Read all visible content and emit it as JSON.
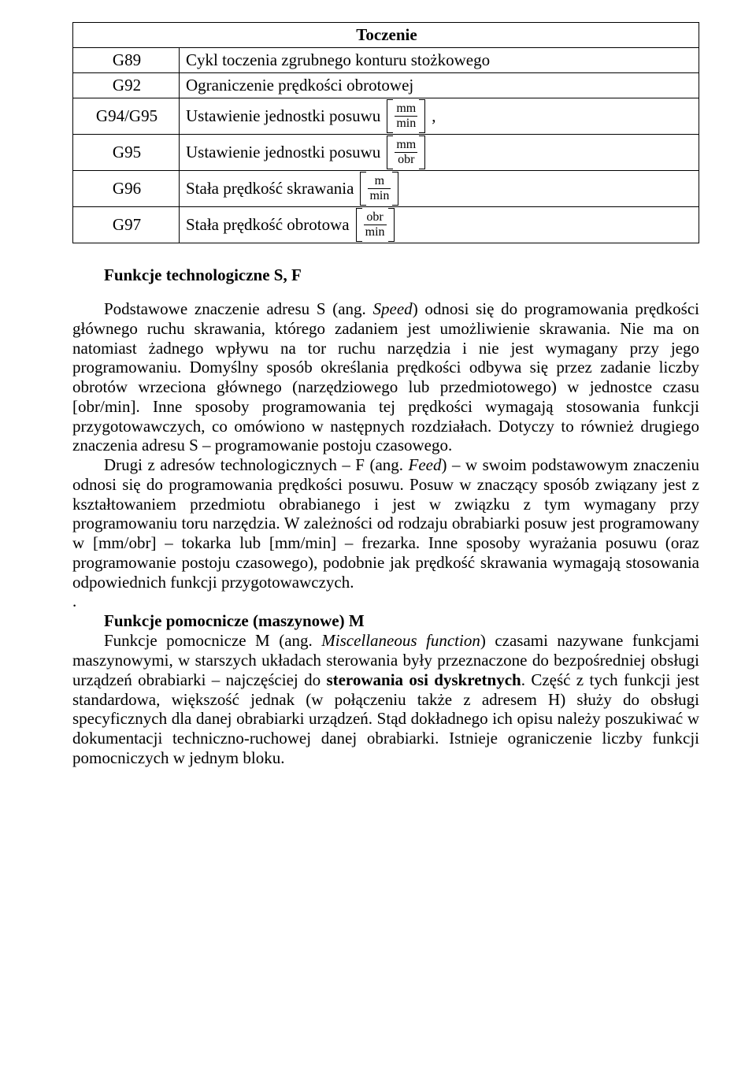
{
  "table": {
    "header": "Toczenie",
    "rows": [
      {
        "code": "G89",
        "desc": "Cykl toczenia zgrubnego konturu stożkowego"
      },
      {
        "code": "G92",
        "desc": "Ograniczenie prędkości obrotowej"
      },
      {
        "code": "G94/G95",
        "desc_prefix": "Ustawienie jednostki posuwu",
        "frac_top": "mm",
        "frac_bot": "min",
        "suffix": ","
      },
      {
        "code": "G95",
        "desc_prefix": "Ustawienie jednostki posuwu",
        "frac_top": "mm",
        "frac_bot": "obr",
        "suffix": ""
      },
      {
        "code": "G96",
        "desc_prefix": "Stała prędkość skrawania",
        "frac_top": "m",
        "frac_bot": "min",
        "suffix": ""
      },
      {
        "code": "G97",
        "desc_prefix": "Stała prędkość obrotowa",
        "frac_top": "obr",
        "frac_bot": "min",
        "suffix": ""
      }
    ]
  },
  "section_sf_title": "Funkcje technologiczne S, F",
  "para1_a": "Podstawowe znaczenie adresu S (ang. ",
  "para1_b_ital": "Speed",
  "para1_c": ") odnosi się do programowania prędkości głównego ruchu skrawania, którego zadaniem jest umożliwienie skrawania. Nie ma on natomiast żadnego wpływu na tor ruchu narzędzia i nie jest wymagany przy jego programowaniu. Domyślny sposób określania prędkości odbywa się przez zadanie liczby obrotów wrzeciona głównego (narzędziowego lub przedmiotowego) w jednostce czasu [obr/min]. Inne sposoby programowania tej prędkości wymagają stosowania funkcji przygotowawczych, co omówiono w następnych rozdziałach. Dotyczy to również drugiego znaczenia adresu S – programowanie postoju czasowego.",
  "para2_a": "Drugi z adresów technologicznych – F (ang. ",
  "para2_b_ital": "Feed",
  "para2_c": ") – w swoim podstawowym znaczeniu odnosi się do programowania prędkości posuwu. Posuw w znaczący sposób związany jest z kształtowaniem przedmiotu obrabianego i jest w związku z tym wymagany przy programowaniu toru narzędzia. W zależności od rodzaju obrabiarki posuw jest programowany w [mm/obr] – tokarka lub [mm/min] – frezarka. Inne sposoby wyrażania posuwu (oraz programowanie postoju czasowego), podobnie jak prędkość skrawania wymagają stosowania odpowiednich funkcji przygotowawczych.",
  "dot": ".",
  "section_m_title": "Funkcje pomocnicze (maszynowe) M",
  "para3_a": "Funkcje pomocnicze M (ang. ",
  "para3_b_ital": "Miscellaneous function",
  "para3_c": ") czasami nazywane funkcjami maszynowymi, w starszych układach sterowania były przeznaczone do bezpośredniej obsługi urządzeń obrabiarki – najczęściej do ",
  "para3_d_bold": "sterowania osi dyskretnych",
  "para3_e": ". Część z tych funkcji jest standardowa, większość jednak (w połączeniu także z adresem H) służy do obsługi specyficznych dla danej obrabiarki urządzeń. Stąd dokładnego ich opisu należy poszukiwać w dokumentacji techniczno-ruchowej danej obrabiarki. Istnieje ograniczenie liczby funkcji pomocniczych w jednym bloku."
}
